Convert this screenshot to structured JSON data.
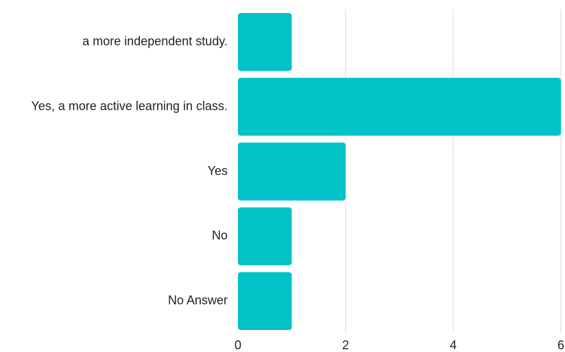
{
  "chart_data": {
    "type": "bar",
    "orientation": "horizontal",
    "title": "",
    "xlabel": "",
    "ylabel": "",
    "categories": [
      "a more independent study.",
      "Yes, a more active learning in class.",
      "Yes",
      "No",
      "No Answer"
    ],
    "values": [
      1,
      6,
      2,
      1,
      1
    ],
    "xlim": [
      0,
      6
    ],
    "x_ticks": [
      0,
      2,
      4,
      6
    ],
    "grid": true,
    "legend": "none",
    "bar_color": "#00c2c7"
  }
}
